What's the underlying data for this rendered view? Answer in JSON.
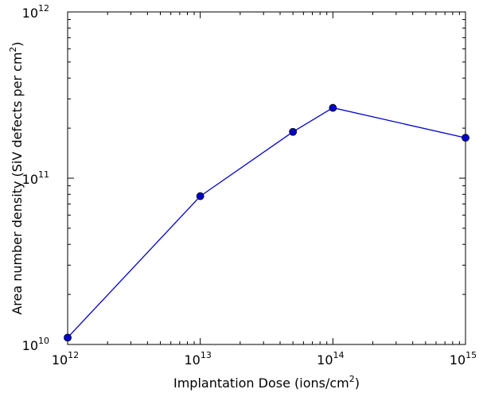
{
  "chart_data": {
    "type": "line",
    "xlabel": "Implantation Dose (ions/cm",
    "xlabel_sup": "2",
    "xlabel_end": ")",
    "ylabel": "Area number density (SiV defects per cm",
    "ylabel_sup": "2",
    "ylabel_end": ")",
    "x_scale": "log",
    "y_scale": "log",
    "xlim": [
      1000000000000.0,
      1000000000000000.0
    ],
    "ylim": [
      10000000000.0,
      1000000000000.0
    ],
    "x_ticks": [
      {
        "base": "10",
        "exp": "12",
        "value": 1000000000000.0
      },
      {
        "base": "10",
        "exp": "13",
        "value": 10000000000000.0
      },
      {
        "base": "10",
        "exp": "14",
        "value": 100000000000000.0
      },
      {
        "base": "10",
        "exp": "15",
        "value": 1000000000000000.0
      }
    ],
    "y_ticks": [
      {
        "base": "10",
        "exp": "10",
        "value": 10000000000.0
      },
      {
        "base": "10",
        "exp": "11",
        "value": 100000000000.0
      },
      {
        "base": "10",
        "exp": "12",
        "value": 1000000000000.0
      }
    ],
    "grid": false,
    "series": [
      {
        "color": "#0000cc",
        "points": [
          {
            "x": 1000000000000.0,
            "y": 11000000000.0
          },
          {
            "x": 10000000000000.0,
            "y": 78000000000.0
          },
          {
            "x": 50000000000000.0,
            "y": 190000000000.0
          },
          {
            "x": 100000000000000.0,
            "y": 265000000000.0
          },
          {
            "x": 1000000000000000.0,
            "y": 175000000000.0
          }
        ]
      }
    ]
  }
}
